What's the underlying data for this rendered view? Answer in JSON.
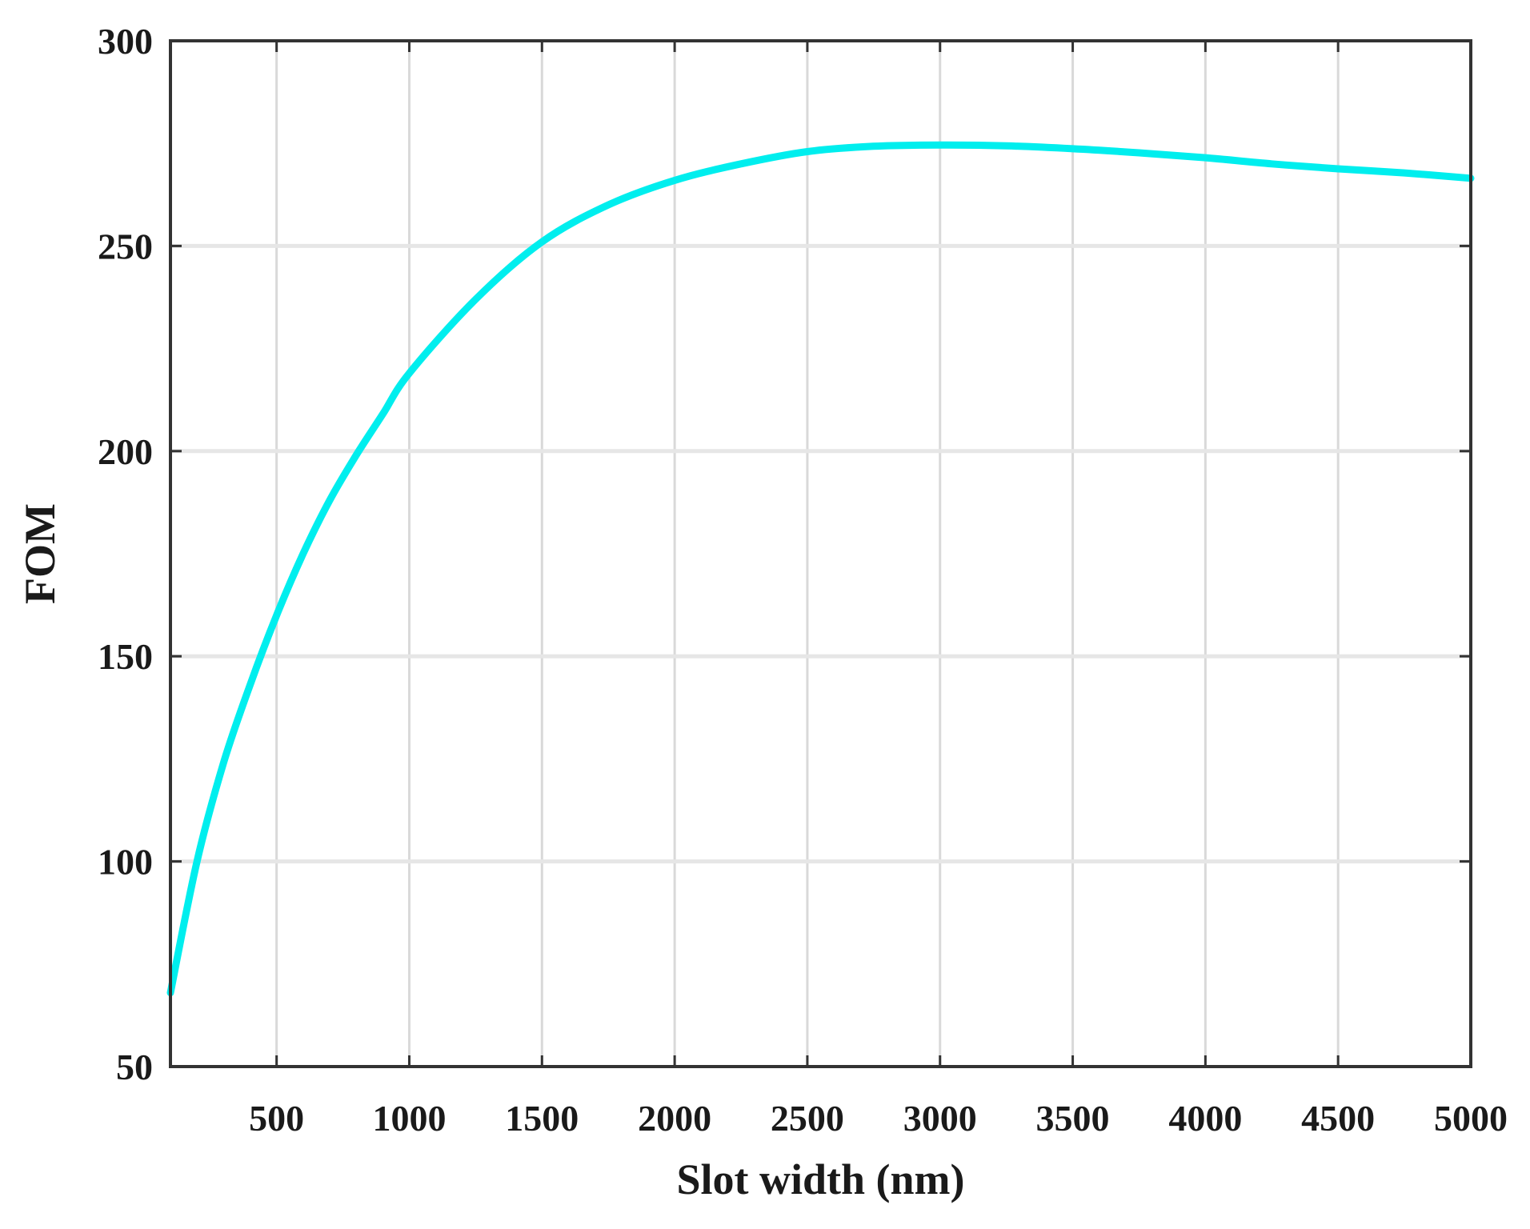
{
  "chart_data": {
    "type": "line",
    "title": "",
    "xlabel": "Slot width (nm)",
    "ylabel": "FOM",
    "xlim": [
      100,
      5000
    ],
    "ylim": [
      50,
      300
    ],
    "x_ticks": [
      500,
      1000,
      1500,
      2000,
      2500,
      3000,
      3500,
      4000,
      4500,
      5000
    ],
    "y_ticks": [
      50,
      100,
      150,
      200,
      250,
      300
    ],
    "x_tick_labels": [
      "500",
      "1000",
      "1500",
      "2000",
      "2500",
      "3000",
      "3500",
      "4000",
      "4500",
      "5000"
    ],
    "y_tick_labels": [
      "50",
      "100",
      "150",
      "200",
      "250",
      "300"
    ],
    "grid": true,
    "legend": "none",
    "series": [
      {
        "color": "#00eeee",
        "x": [
          100,
          200,
          300,
          400,
          500,
          600,
          700,
          800,
          900,
          1000,
          1250,
          1500,
          1750,
          2000,
          2250,
          2500,
          2750,
          3000,
          3250,
          3500,
          3750,
          4000,
          4250,
          4500,
          4750,
          5000
        ],
        "y": [
          68,
          100,
          124,
          143,
          160,
          175,
          188,
          199,
          209,
          219,
          237,
          251,
          260,
          266,
          270,
          273,
          274.3,
          274.6,
          274.4,
          273.7,
          272.7,
          271.5,
          270,
          268.8,
          267.8,
          266.5
        ]
      }
    ]
  }
}
